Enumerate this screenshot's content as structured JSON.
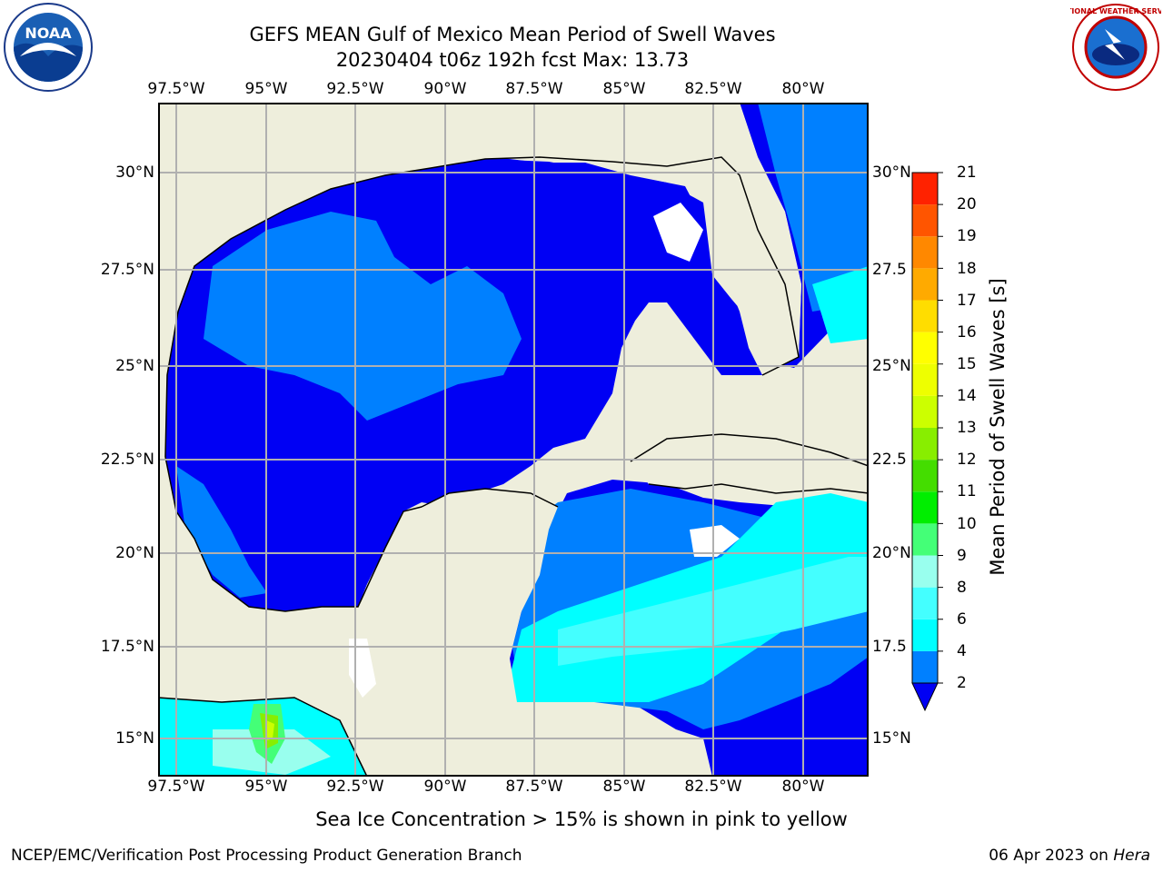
{
  "title": {
    "line1": "GEFS MEAN Gulf of Mexico Mean Period of Swell Waves",
    "line2": "20230404 t06z 192h fcst   Max: 13.73"
  },
  "map": {
    "lon_range": [
      -98,
      -78
    ],
    "lat_range": [
      14,
      32
    ],
    "lon_ticks": [
      "97.5°W",
      "95°W",
      "92.5°W",
      "90°W",
      "87.5°W",
      "85°W",
      "82.5°W",
      "80°W"
    ],
    "lat_ticks": [
      "30°N",
      "27.5°N",
      "25°N",
      "22.5°N",
      "20°N",
      "17.5°N",
      "15°N"
    ],
    "lat_ticks_right": [
      "30°N",
      "27.5",
      "25°N",
      "22.5",
      "20°N",
      "17.5",
      "15°N"
    ],
    "colors": {
      "land": "#eeeedc",
      "ocean": "#0000f4",
      "grid": "#b0b0b0",
      "no_data": "#ffffff"
    }
  },
  "colorbar": {
    "label": "Mean Period of Swell Waves [s]",
    "ticks": [
      "21",
      "20",
      "19",
      "18",
      "17",
      "16",
      "15",
      "14",
      "13",
      "12",
      "11",
      "10",
      "9",
      "8",
      "6",
      "4",
      "2"
    ],
    "levels": [
      {
        "min": 2,
        "color": "#0080ff"
      },
      {
        "min": 4,
        "color": "#00ffff"
      },
      {
        "min": 6,
        "color": "#44ffff"
      },
      {
        "min": 8,
        "color": "#99ffee"
      },
      {
        "min": 9,
        "color": "#44ff77"
      },
      {
        "min": 10,
        "color": "#00ee00"
      },
      {
        "min": 11,
        "color": "#44dd00"
      },
      {
        "min": 12,
        "color": "#88ee00"
      },
      {
        "min": 13,
        "color": "#ccff00"
      },
      {
        "min": 14,
        "color": "#eeff00"
      },
      {
        "min": 15,
        "color": "#ffff00"
      },
      {
        "min": 16,
        "color": "#ffdd00"
      },
      {
        "min": 17,
        "color": "#ffaa00"
      },
      {
        "min": 18,
        "color": "#ff8800"
      },
      {
        "min": 19,
        "color": "#ff5500"
      },
      {
        "min": 20,
        "color": "#ff2200"
      }
    ],
    "extend_below_color": "#0000f4"
  },
  "logos": {
    "left": "NOAA",
    "right": "NATIONAL WEATHER SERVICE"
  },
  "footer": {
    "note": "Sea Ice Concentration > 15% is shown in pink to yellow",
    "left": "NCEP/EMC/Verification Post Processing Product Generation Branch",
    "right_prefix": "06 Apr 2023 on ",
    "right_host": "Hera"
  }
}
